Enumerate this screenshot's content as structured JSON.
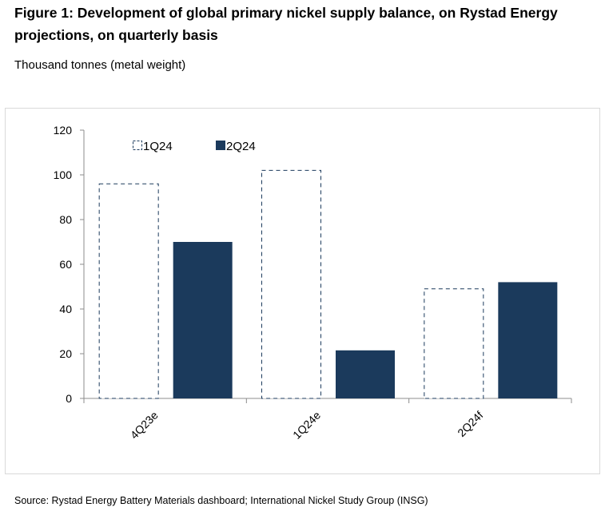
{
  "header": {
    "title": "Figure 1: Development of global primary nickel supply balance, on Rystad Energy projections, on quarterly basis",
    "subtitle": "Thousand tonnes (metal weight)"
  },
  "footer": {
    "source": "Source: Rystad Energy Battery Materials dashboard; International Nickel Study Group (INSG)"
  },
  "chart_data": {
    "type": "bar",
    "title": "Development of global primary nickel supply balance, on Rystad Energy projections, on quarterly basis",
    "ylabel": "Thousand tonnes (metal weight)",
    "xlabel": "",
    "categories": [
      "4Q23e",
      "1Q24e",
      "2Q24f"
    ],
    "series": [
      {
        "name": "1Q24",
        "values": [
          96,
          102,
          49
        ],
        "style": "dashed-outline",
        "color": "#1b3a5c"
      },
      {
        "name": "2Q24",
        "values": [
          70,
          21.5,
          52
        ],
        "style": "solid",
        "color": "#1b3a5c"
      }
    ],
    "ylim": [
      0,
      120
    ],
    "yticks": [
      0,
      20,
      40,
      60,
      80,
      100,
      120
    ],
    "legend": "top-left",
    "grid": false
  }
}
